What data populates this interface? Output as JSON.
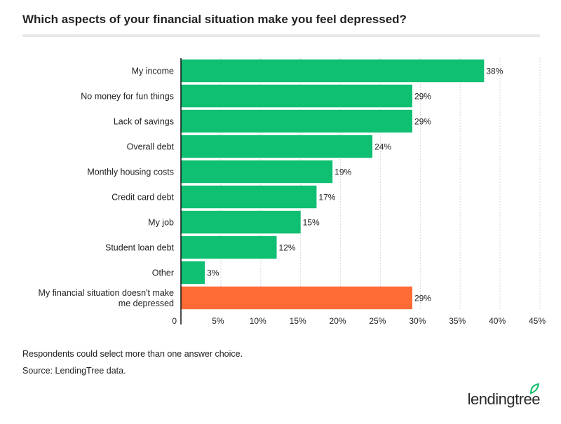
{
  "title": "Which aspects of your financial situation make you feel depressed?",
  "notes": {
    "note1": "Respondents could select more than one answer choice.",
    "note2": "Source: LendingTree data."
  },
  "logo": {
    "text": "lendingtree",
    "leaf_color": "#0fbd6c"
  },
  "colors": {
    "primary": "#0fbf72",
    "highlight": "#ff6b35",
    "grid": "#d9d9d9",
    "axis": "#111111"
  },
  "chart_data": {
    "type": "bar",
    "orientation": "horizontal",
    "categories": [
      "My income",
      "No money for fun things",
      "Lack of savings",
      "Overall debt",
      "Monthly housing costs",
      "Credit card debt",
      "My job",
      "Student loan debt",
      "Other",
      "My financial situation doesn't make me depressed"
    ],
    "values": [
      38,
      29,
      29,
      24,
      19,
      17,
      15,
      12,
      3,
      29
    ],
    "value_labels": [
      "38%",
      "29%",
      "29%",
      "24%",
      "19%",
      "17%",
      "15%",
      "12%",
      "3%",
      "29%"
    ],
    "highlight_index": 9,
    "xlim": [
      0,
      45
    ],
    "xticks": [
      0,
      5,
      10,
      15,
      20,
      25,
      30,
      35,
      40,
      45
    ],
    "xtick_labels": [
      "0",
      "5%",
      "10%",
      "15%",
      "20%",
      "25%",
      "30%",
      "35%",
      "40%",
      "45%"
    ],
    "grid": true
  }
}
